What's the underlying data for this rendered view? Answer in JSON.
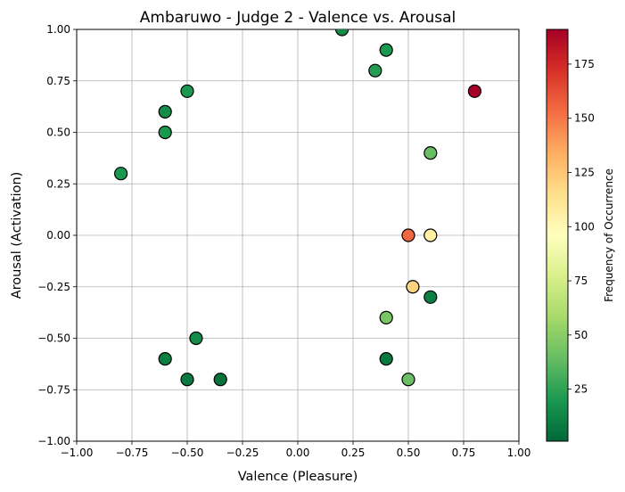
{
  "chart_data": {
    "type": "scatter",
    "title": "Ambaruwo - Judge 2 - Valence vs. Arousal",
    "xlabel": "Valence (Pleasure)",
    "ylabel": "Arousal (Activation)",
    "xlim": [
      -1.0,
      1.0
    ],
    "ylim": [
      -1.0,
      1.0
    ],
    "x_ticks": [
      "−1.00",
      "−0.75",
      "−0.50",
      "−0.25",
      "0.00",
      "0.25",
      "0.50",
      "0.75",
      "1.00"
    ],
    "y_ticks": [
      "−1.00",
      "−0.75",
      "−0.50",
      "−0.25",
      "0.00",
      "0.25",
      "0.50",
      "0.75",
      "1.00"
    ],
    "grid": true,
    "colorbar": {
      "label": "Frequency of Occurrence",
      "range": [
        1,
        191
      ],
      "colormap": "RdYlGn_r",
      "ticks": [
        "25",
        "50",
        "75",
        "100",
        "125",
        "150",
        "175"
      ]
    },
    "points": [
      {
        "x": 0.2,
        "y": 1.0,
        "freq": 15
      },
      {
        "x": 0.4,
        "y": 0.9,
        "freq": 20
      },
      {
        "x": 0.35,
        "y": 0.8,
        "freq": 22
      },
      {
        "x": 0.8,
        "y": 0.7,
        "freq": 191
      },
      {
        "x": -0.5,
        "y": 0.7,
        "freq": 20
      },
      {
        "x": -0.6,
        "y": 0.6,
        "freq": 15
      },
      {
        "x": -0.6,
        "y": 0.5,
        "freq": 20
      },
      {
        "x": 0.6,
        "y": 0.4,
        "freq": 40
      },
      {
        "x": -0.8,
        "y": 0.3,
        "freq": 20
      },
      {
        "x": 0.5,
        "y": 0.0,
        "freq": 155
      },
      {
        "x": 0.6,
        "y": 0.0,
        "freq": 105
      },
      {
        "x": 0.52,
        "y": -0.25,
        "freq": 120
      },
      {
        "x": 0.6,
        "y": -0.3,
        "freq": 10
      },
      {
        "x": 0.4,
        "y": -0.4,
        "freq": 45
      },
      {
        "x": -0.46,
        "y": -0.5,
        "freq": 15
      },
      {
        "x": -0.6,
        "y": -0.6,
        "freq": 10
      },
      {
        "x": 0.4,
        "y": -0.6,
        "freq": 8
      },
      {
        "x": -0.5,
        "y": -0.7,
        "freq": 8
      },
      {
        "x": -0.35,
        "y": -0.7,
        "freq": 5
      },
      {
        "x": 0.5,
        "y": -0.7,
        "freq": 40
      }
    ]
  }
}
